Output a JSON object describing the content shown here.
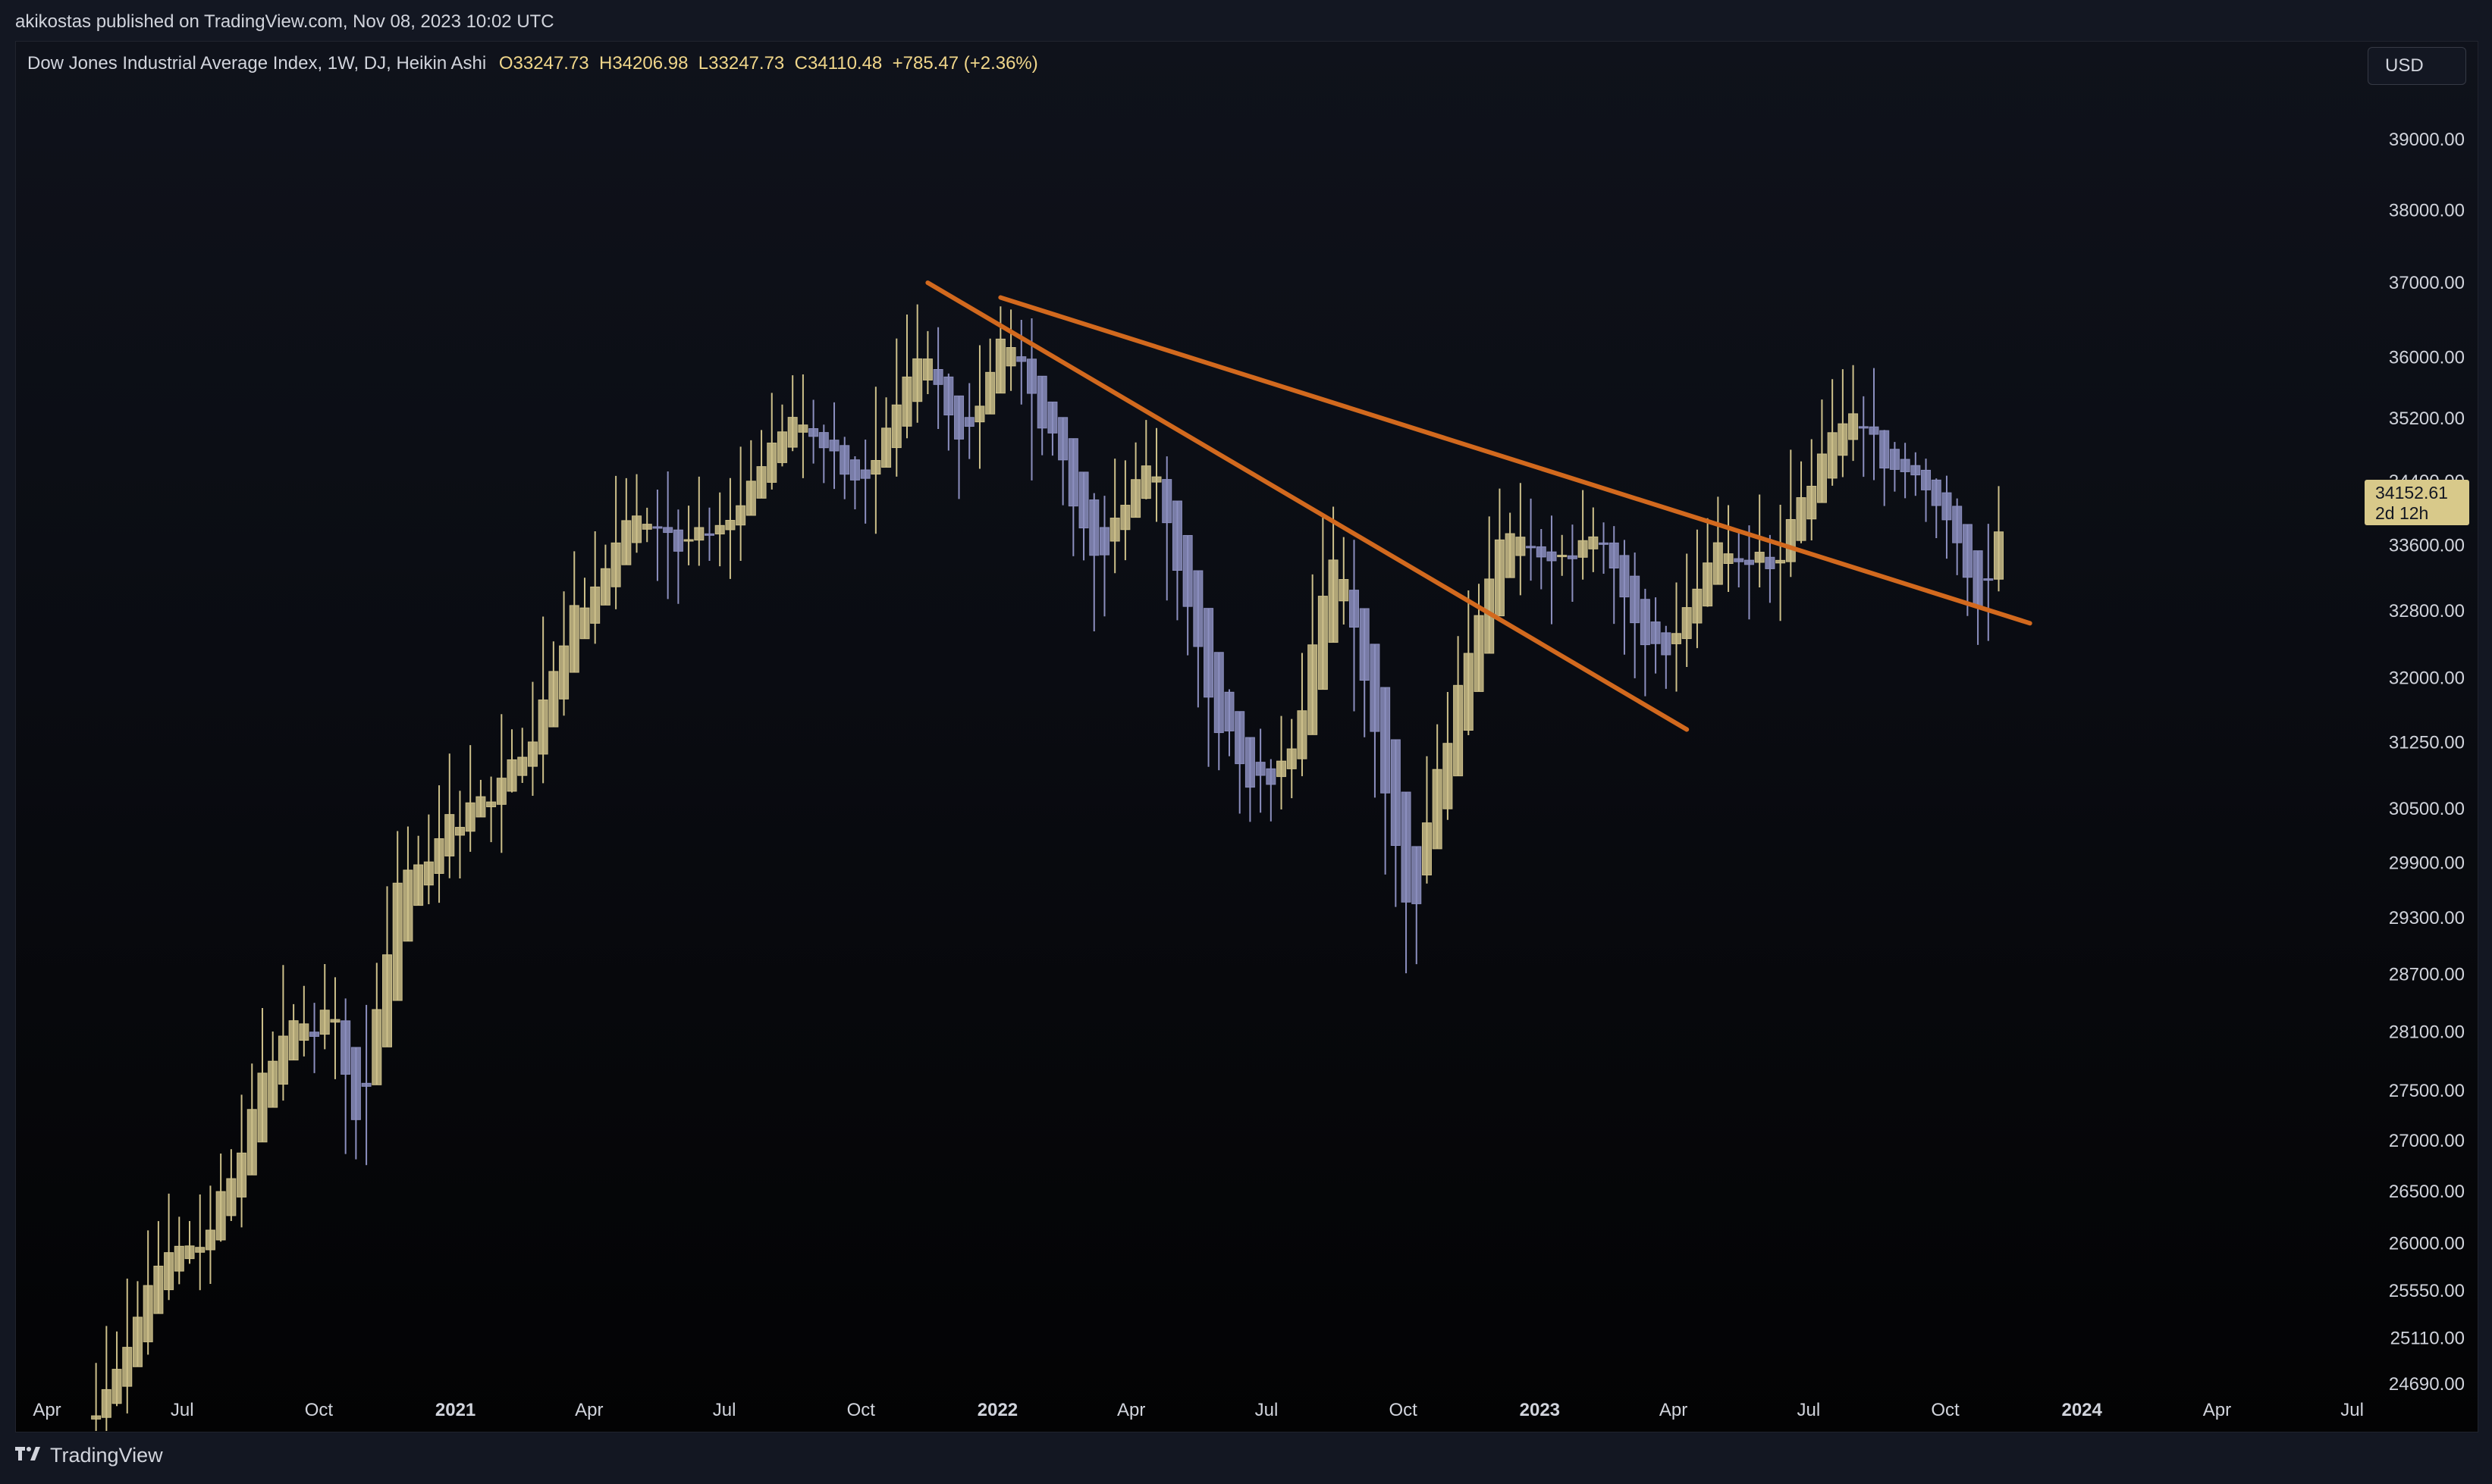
{
  "header": {
    "publish_text": "akikostas published on TradingView.com, Nov 08, 2023 10:02 UTC"
  },
  "legend": {
    "title": "Dow Jones Industrial Average Index, 1W, DJ, Heikin Ashi",
    "open_label": "O",
    "open": "33247.73",
    "high_label": "H",
    "high": "34206.98",
    "low_label": "L",
    "low": "33247.73",
    "close_label": "C",
    "close": "34110.48",
    "change": "+785.47 (+2.36%)"
  },
  "toolbar": {
    "currency": "USD"
  },
  "price_flag": {
    "price": "34152.61",
    "countdown": "2d 12h"
  },
  "footer": {
    "brand": "TradingView",
    "brand_icon": "tradingview-logo-icon"
  },
  "colors": {
    "background": "#131722",
    "bull_candle": "#cdc08a",
    "bear_candle": "#8c8fbf",
    "trendline": "#d2691e",
    "axis_text": "#d1d4dc"
  },
  "chart_data": {
    "type": "candlestick",
    "style": "Heikin Ashi",
    "symbol": "DJ",
    "interval": "1W",
    "currency": "USD",
    "price_scale": "right, log",
    "y_ticks": [
      "39000.00",
      "38000.00",
      "37000.00",
      "36000.00",
      "35200.00",
      "34400.00",
      "33600.00",
      "32800.00",
      "32000.00",
      "31250.00",
      "30500.00",
      "29900.00",
      "29300.00",
      "28700.00",
      "28100.00",
      "27500.00",
      "27000.00",
      "26500.00",
      "26000.00",
      "25550.00",
      "25110.00",
      "24690.00"
    ],
    "y_tick_values": [
      39000,
      38000,
      37000,
      36000,
      35200,
      34400,
      33600,
      32800,
      32000,
      31250,
      30500,
      29900,
      29300,
      28700,
      28100,
      27500,
      27000,
      26500,
      26000,
      25550,
      25110,
      24690
    ],
    "x_ticks": [
      {
        "label": "Apr",
        "date": "2020-04-01",
        "bold": false
      },
      {
        "label": "Jul",
        "date": "2020-07-01",
        "bold": false
      },
      {
        "label": "Oct",
        "date": "2020-10-01",
        "bold": false
      },
      {
        "label": "2021",
        "date": "2021-01-01",
        "bold": true
      },
      {
        "label": "Apr",
        "date": "2021-04-01",
        "bold": false
      },
      {
        "label": "Jul",
        "date": "2021-07-01",
        "bold": false
      },
      {
        "label": "Oct",
        "date": "2021-10-01",
        "bold": false
      },
      {
        "label": "2022",
        "date": "2022-01-01",
        "bold": true
      },
      {
        "label": "Apr",
        "date": "2022-04-01",
        "bold": false
      },
      {
        "label": "Jul",
        "date": "2022-07-01",
        "bold": false
      },
      {
        "label": "Oct",
        "date": "2022-10-01",
        "bold": false
      },
      {
        "label": "2023",
        "date": "2023-01-01",
        "bold": true
      },
      {
        "label": "Apr",
        "date": "2023-04-01",
        "bold": false
      },
      {
        "label": "Jul",
        "date": "2023-07-01",
        "bold": false
      },
      {
        "label": "Oct",
        "date": "2023-10-01",
        "bold": false
      },
      {
        "label": "2024",
        "date": "2024-01-01",
        "bold": true
      },
      {
        "label": "Apr",
        "date": "2024-04-01",
        "bold": false
      },
      {
        "label": "Jul",
        "date": "2024-07-01",
        "bold": false
      }
    ],
    "anchors": [
      [
        "2020-05-04",
        24500
      ],
      [
        "2020-06-08",
        25800
      ],
      [
        "2020-07-13",
        26000
      ],
      [
        "2020-08-17",
        27500
      ],
      [
        "2020-09-07",
        28200
      ],
      [
        "2020-10-05",
        28300
      ],
      [
        "2020-10-26",
        27000
      ],
      [
        "2020-11-16",
        29500
      ],
      [
        "2020-12-28",
        30400
      ],
      [
        "2021-02-15",
        31200
      ],
      [
        "2021-03-15",
        32600
      ],
      [
        "2021-05-03",
        34100
      ],
      [
        "2021-06-21",
        33600
      ],
      [
        "2021-08-16",
        35300
      ],
      [
        "2021-10-04",
        34200
      ],
      [
        "2021-11-08",
        36100
      ],
      [
        "2021-12-06",
        35000
      ],
      [
        "2022-01-03",
        36300
      ],
      [
        "2022-02-07",
        34900
      ],
      [
        "2022-03-07",
        33200
      ],
      [
        "2022-04-04",
        34700
      ],
      [
        "2022-05-02",
        33400
      ],
      [
        "2022-05-23",
        31400
      ],
      [
        "2022-06-20",
        30700
      ],
      [
        "2022-07-25",
        31900
      ],
      [
        "2022-08-15",
        33600
      ],
      [
        "2022-09-12",
        31200
      ],
      [
        "2022-10-03",
        29300
      ],
      [
        "2022-10-31",
        31900
      ],
      [
        "2022-12-05",
        33900
      ],
      [
        "2023-01-09",
        33400
      ],
      [
        "2023-02-13",
        33600
      ],
      [
        "2023-03-13",
        32200
      ],
      [
        "2023-04-24",
        33600
      ],
      [
        "2023-05-29",
        33200
      ],
      [
        "2023-06-26",
        34200
      ],
      [
        "2023-07-24",
        35200
      ],
      [
        "2023-08-21",
        34500
      ],
      [
        "2023-09-18",
        34100
      ],
      [
        "2023-10-16",
        33000
      ],
      [
        "2023-10-30",
        33250
      ],
      [
        "2023-11-06",
        34110
      ]
    ],
    "trendlines": [
      {
        "from": [
          "2021-11-15",
          37000
        ],
        "to": [
          "2023-04-10",
          31400
        ]
      },
      {
        "from": [
          "2022-01-03",
          36800
        ],
        "to": [
          "2023-11-27",
          32650
        ]
      }
    ],
    "last_price": 34152.61
  }
}
